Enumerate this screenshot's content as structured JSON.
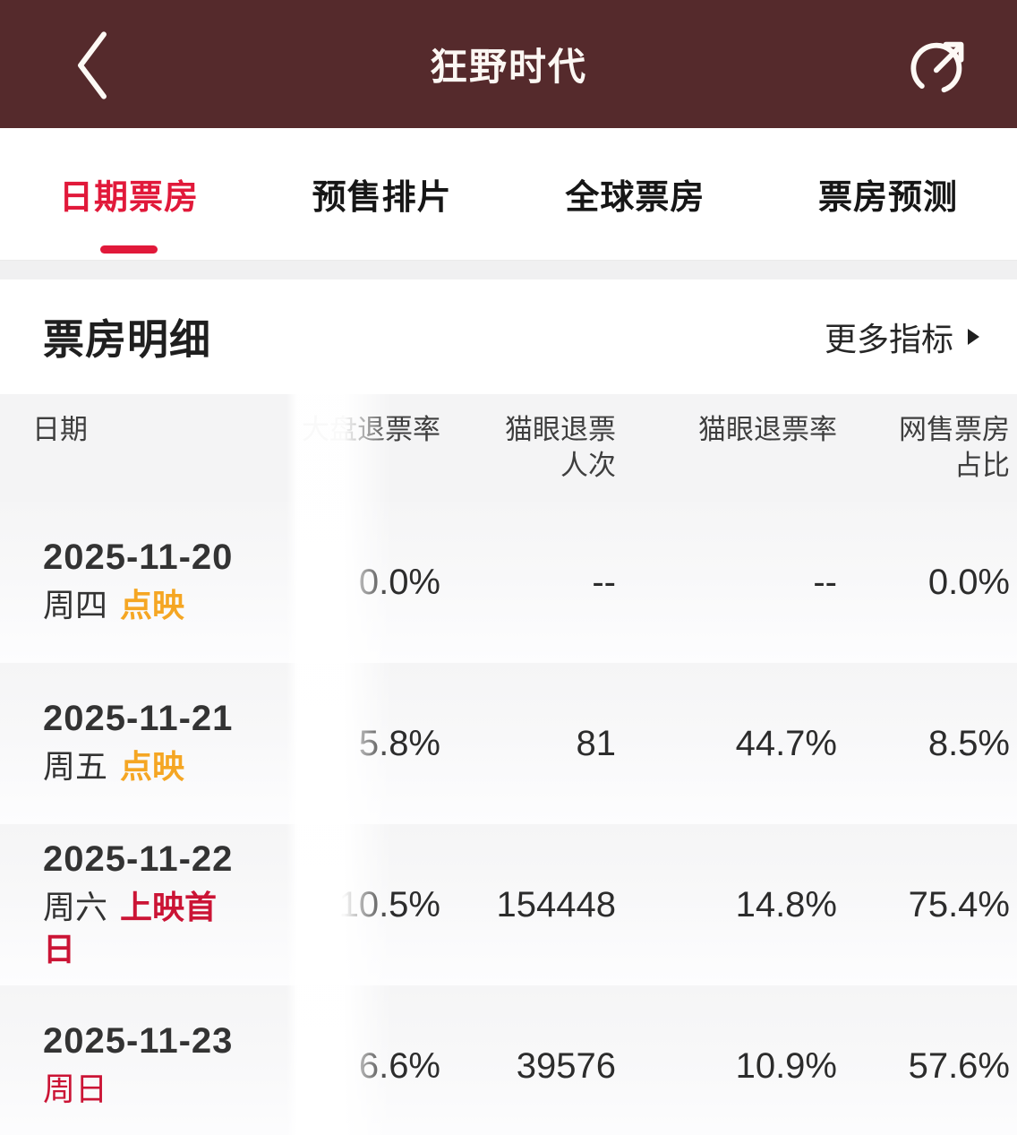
{
  "header": {
    "title": "狂野时代"
  },
  "tabs": [
    {
      "label": "日期票房",
      "active": true
    },
    {
      "label": "预售排片",
      "active": false
    },
    {
      "label": "全球票房",
      "active": false
    },
    {
      "label": "票房预测",
      "active": false
    }
  ],
  "section": {
    "title": "票房明细",
    "more_label": "更多指标"
  },
  "table": {
    "columns": [
      "日期",
      "大盘退票率",
      "猫眼退票\n人次",
      "猫眼退票率",
      "网售票房\n占比"
    ],
    "rows": [
      {
        "date": "2025-11-20",
        "weekday": "周四",
        "weekday_red": false,
        "tag": "点映",
        "tag_style": "orange",
        "values": [
          "0.0%",
          "--",
          "--",
          "0.0%"
        ]
      },
      {
        "date": "2025-11-21",
        "weekday": "周五",
        "weekday_red": false,
        "tag": "点映",
        "tag_style": "orange",
        "values": [
          "5.8%",
          "81",
          "44.7%",
          "8.5%"
        ]
      },
      {
        "date": "2025-11-22",
        "weekday": "周六",
        "weekday_red": false,
        "tag": "上映首日",
        "tag_style": "red",
        "values": [
          "10.5%",
          "154448",
          "14.8%",
          "75.4%"
        ]
      },
      {
        "date": "2025-11-23",
        "weekday": "周日",
        "weekday_red": true,
        "tag": "",
        "tag_style": "",
        "values": [
          "6.6%",
          "39576",
          "10.9%",
          "57.6%"
        ]
      }
    ]
  },
  "icons": {
    "back": "chevron-left-icon",
    "share": "share-circle-arrow-icon",
    "more": "caret-right-icon"
  },
  "colors": {
    "appbar_bg": "#552a2c",
    "appbar_text": "#fbf7f3",
    "active_tab": "#e1193a",
    "tag_orange": "#f5a623",
    "tag_red": "#cb1435",
    "weekday_red": "#cb1435"
  }
}
